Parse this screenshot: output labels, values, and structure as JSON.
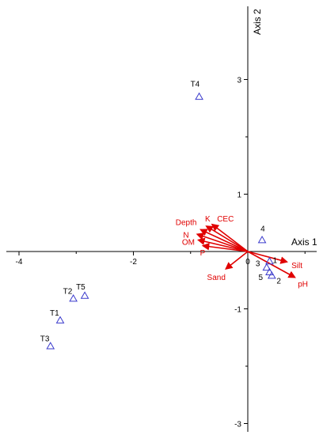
{
  "chart_data": {
    "type": "scatter",
    "title": "",
    "xlabel": "Axis 1",
    "ylabel": "Axis 2",
    "xlim": [
      -4.3,
      1.2
    ],
    "ylim": [
      -3.1,
      4.0
    ],
    "x_ticks": [
      -4,
      -2,
      0
    ],
    "x_tick_labels": [
      "-4",
      "-2",
      "0"
    ],
    "y_ticks": [
      -3,
      -1,
      1,
      3
    ],
    "y_tick_labels": [
      "-3",
      "-1",
      "1",
      "3"
    ],
    "grid": false,
    "marker_color": "#3a3acc",
    "vector_color": "#e00000",
    "axis_color": "#000000",
    "points": [
      {
        "label": "T4",
        "x": -0.85,
        "y": 2.7
      },
      {
        "label": "4",
        "x": 0.25,
        "y": 0.2
      },
      {
        "label": "1",
        "x": 0.38,
        "y": -0.17
      },
      {
        "label": "3",
        "x": 0.33,
        "y": -0.28
      },
      {
        "label": "5",
        "x": 0.38,
        "y": -0.36
      },
      {
        "label": "2",
        "x": 0.42,
        "y": -0.42
      },
      {
        "label": "T2",
        "x": -3.05,
        "y": -0.82
      },
      {
        "label": "T5",
        "x": -2.85,
        "y": -0.77
      },
      {
        "label": "T1",
        "x": -3.28,
        "y": -1.2
      },
      {
        "label": "T3",
        "x": -3.45,
        "y": -1.65
      }
    ],
    "vectors": [
      {
        "label": "Depth",
        "x": -0.82,
        "y": 0.38
      },
      {
        "label": "K",
        "x": -0.72,
        "y": 0.44
      },
      {
        "label": "CEC",
        "x": -0.62,
        "y": 0.47
      },
      {
        "label": "N",
        "x": -0.88,
        "y": 0.3
      },
      {
        "label": "OM",
        "x": -0.86,
        "y": 0.2
      },
      {
        "label": "P",
        "x": -0.78,
        "y": 0.1
      },
      {
        "label": "Sand",
        "x": -0.38,
        "y": -0.3
      },
      {
        "label": "Silt",
        "x": 0.68,
        "y": -0.18
      },
      {
        "label": "pH",
        "x": 0.82,
        "y": -0.45
      }
    ]
  }
}
